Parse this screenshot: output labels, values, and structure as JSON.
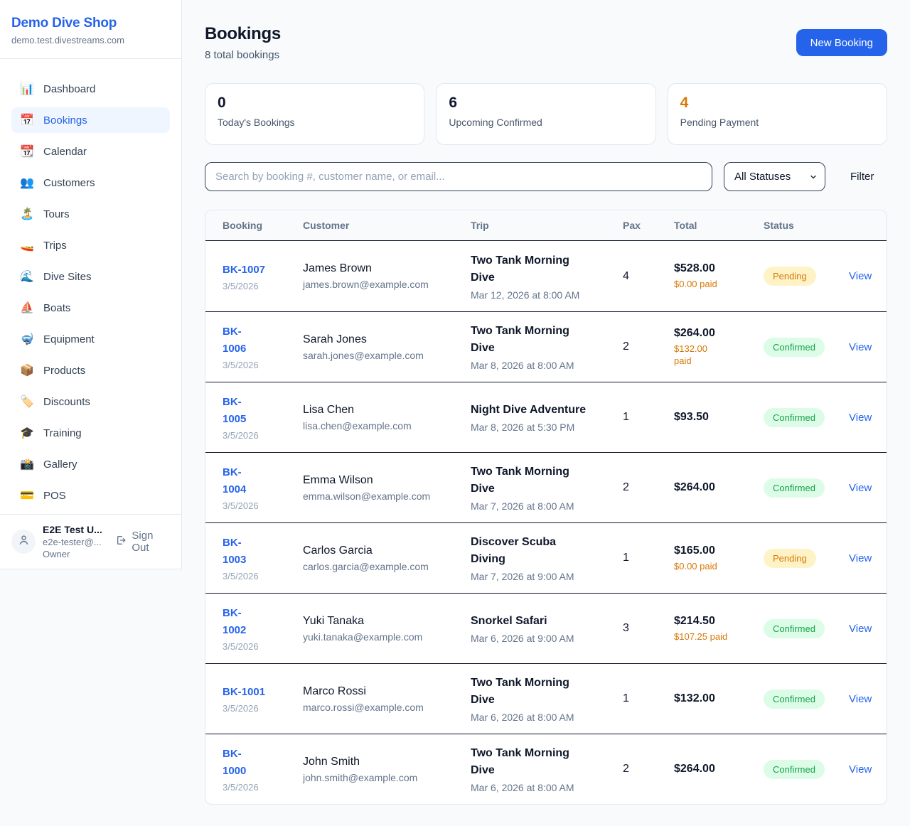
{
  "sidebar": {
    "shop_name": "Demo Dive Shop",
    "domain": "demo.test.divestreams.com",
    "items": [
      {
        "icon": "📊",
        "label": "Dashboard",
        "active": false
      },
      {
        "icon": "📅",
        "label": "Bookings",
        "active": true
      },
      {
        "icon": "📆",
        "label": "Calendar",
        "active": false
      },
      {
        "icon": "👥",
        "label": "Customers",
        "active": false
      },
      {
        "icon": "🏝️",
        "label": "Tours",
        "active": false
      },
      {
        "icon": "🚤",
        "label": "Trips",
        "active": false
      },
      {
        "icon": "🌊",
        "label": "Dive Sites",
        "active": false
      },
      {
        "icon": "⛵",
        "label": "Boats",
        "active": false
      },
      {
        "icon": "🤿",
        "label": "Equipment",
        "active": false
      },
      {
        "icon": "📦",
        "label": "Products",
        "active": false
      },
      {
        "icon": "🏷️",
        "label": "Discounts",
        "active": false
      },
      {
        "icon": "🎓",
        "label": "Training",
        "active": false
      },
      {
        "icon": "📸",
        "label": "Gallery",
        "active": false
      },
      {
        "icon": "💳",
        "label": "POS",
        "active": false
      }
    ],
    "user": {
      "name": "E2E Test U...",
      "email": "e2e-tester@...",
      "role": "Owner",
      "sign_out_label": "Sign Out"
    }
  },
  "header": {
    "title": "Bookings",
    "subtitle": "8 total bookings",
    "new_booking_label": "New Booking"
  },
  "stats": [
    {
      "value": "0",
      "label": "Today's Bookings",
      "color": "#0f172a"
    },
    {
      "value": "6",
      "label": "Upcoming Confirmed",
      "color": "#0f172a"
    },
    {
      "value": "4",
      "label": "Pending Payment",
      "color": "#d97706"
    }
  ],
  "filters": {
    "search_placeholder": "Search by booking #, customer name, or email...",
    "status_selected": "All Statuses",
    "filter_label": "Filter"
  },
  "table": {
    "columns": [
      "Booking",
      "Customer",
      "Trip",
      "Pax",
      "Total",
      "Status"
    ],
    "rows": [
      {
        "booking_number": "BK-1007",
        "booking_date": "3/5/2026",
        "customer_name": "James Brown",
        "customer_email": "james.brown@example.com",
        "trip_name": "Two Tank Morning\nDive",
        "trip_datetime": "Mar 12, 2026 at 8:00 AM",
        "pax": "4",
        "total": "$528.00",
        "paid": "$0.00 paid",
        "status": "Pending",
        "view_label": "View"
      },
      {
        "booking_number": "BK-\n1006",
        "booking_date": "3/5/2026",
        "customer_name": "Sarah Jones",
        "customer_email": "sarah.jones@example.com",
        "trip_name": "Two Tank Morning\nDive",
        "trip_datetime": "Mar 8, 2026 at 8:00 AM",
        "pax": "2",
        "total": "$264.00",
        "paid": "$132.00\npaid",
        "status": "Confirmed",
        "view_label": "View"
      },
      {
        "booking_number": "BK-\n1005",
        "booking_date": "3/5/2026",
        "customer_name": "Lisa Chen",
        "customer_email": "lisa.chen@example.com",
        "trip_name": "Night Dive Adventure",
        "trip_datetime": "Mar 8, 2026 at 5:30 PM",
        "pax": "1",
        "total": "$93.50",
        "paid": "",
        "status": "Confirmed",
        "view_label": "View"
      },
      {
        "booking_number": "BK-\n1004",
        "booking_date": "3/5/2026",
        "customer_name": "Emma Wilson",
        "customer_email": "emma.wilson@example.com",
        "trip_name": "Two Tank Morning\nDive",
        "trip_datetime": "Mar 7, 2026 at 8:00 AM",
        "pax": "2",
        "total": "$264.00",
        "paid": "",
        "status": "Confirmed",
        "view_label": "View"
      },
      {
        "booking_number": "BK-\n1003",
        "booking_date": "3/5/2026",
        "customer_name": "Carlos Garcia",
        "customer_email": "carlos.garcia@example.com",
        "trip_name": "Discover Scuba\nDiving",
        "trip_datetime": "Mar 7, 2026 at 9:00 AM",
        "pax": "1",
        "total": "$165.00",
        "paid": "$0.00 paid",
        "status": "Pending",
        "view_label": "View"
      },
      {
        "booking_number": "BK-\n1002",
        "booking_date": "3/5/2026",
        "customer_name": "Yuki Tanaka",
        "customer_email": "yuki.tanaka@example.com",
        "trip_name": "Snorkel Safari",
        "trip_datetime": "Mar 6, 2026 at 9:00 AM",
        "pax": "3",
        "total": "$214.50",
        "paid": "$107.25 paid",
        "status": "Confirmed",
        "view_label": "View"
      },
      {
        "booking_number": "BK-1001",
        "booking_date": "3/5/2026",
        "customer_name": "Marco Rossi",
        "customer_email": "marco.rossi@example.com",
        "trip_name": "Two Tank Morning\nDive",
        "trip_datetime": "Mar 6, 2026 at 8:00 AM",
        "pax": "1",
        "total": "$132.00",
        "paid": "",
        "status": "Confirmed",
        "view_label": "View"
      },
      {
        "booking_number": "BK-\n1000",
        "booking_date": "3/5/2026",
        "customer_name": "John Smith",
        "customer_email": "john.smith@example.com",
        "trip_name": "Two Tank Morning\nDive",
        "trip_datetime": "Mar 6, 2026 at 8:00 AM",
        "pax": "2",
        "total": "$264.00",
        "paid": "",
        "status": "Confirmed",
        "view_label": "View"
      }
    ]
  },
  "colors": {
    "accent": "#2563eb",
    "pending_text": "#d97706",
    "pending_bg": "#fef3c7",
    "confirmed_text": "#16a34a",
    "confirmed_bg": "#dcfce7",
    "paid_orange": "#d97706"
  }
}
